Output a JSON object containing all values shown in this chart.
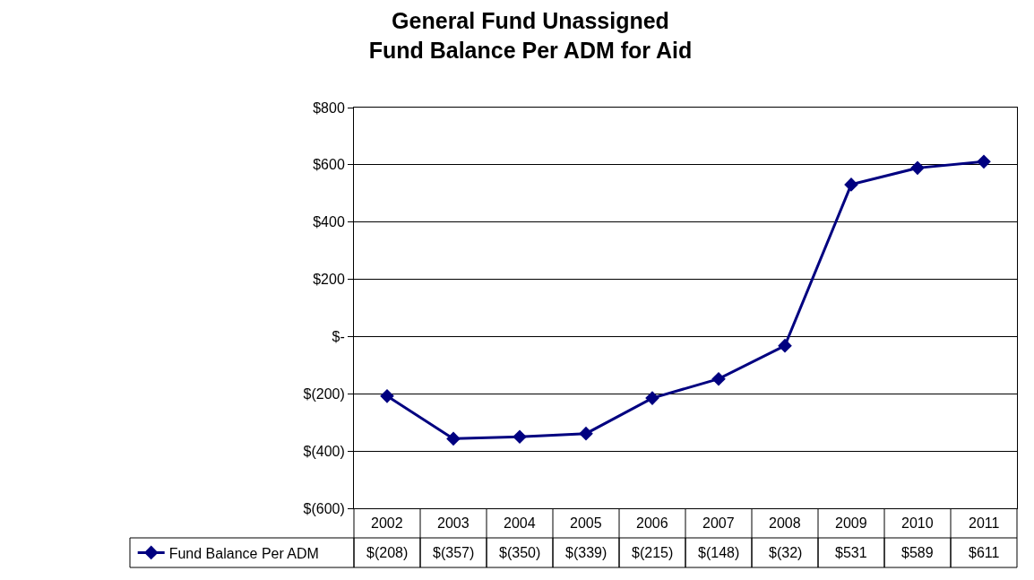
{
  "chart_data": {
    "type": "line",
    "title": "General Fund Unassigned\nFund Balance Per ADM for Aid",
    "categories": [
      "2002",
      "2003",
      "2004",
      "2005",
      "2006",
      "2007",
      "2008",
      "2009",
      "2010",
      "2011"
    ],
    "series": [
      {
        "name": "Fund Balance Per ADM",
        "color": "#000080",
        "values": [
          -208,
          -357,
          -350,
          -339,
          -215,
          -148,
          -32,
          531,
          589,
          611
        ],
        "value_labels": [
          "$(208)",
          "$(357)",
          "$(350)",
          "$(339)",
          "$(215)",
          "$(148)",
          "$(32)",
          "$531",
          "$589",
          "$611"
        ]
      }
    ],
    "ylim": [
      -600,
      800
    ],
    "yticks": [
      {
        "value": -600,
        "label": "$(600)"
      },
      {
        "value": -400,
        "label": "$(400)"
      },
      {
        "value": -200,
        "label": "$(200)"
      },
      {
        "value": 0,
        "label": "$-"
      },
      {
        "value": 200,
        "label": "$200"
      },
      {
        "value": 400,
        "label": "$400"
      },
      {
        "value": 600,
        "label": "$600"
      },
      {
        "value": 800,
        "label": "$800"
      }
    ],
    "grid": "y",
    "legend": "bottom left",
    "marker": "diamond",
    "line_style": "solid"
  }
}
